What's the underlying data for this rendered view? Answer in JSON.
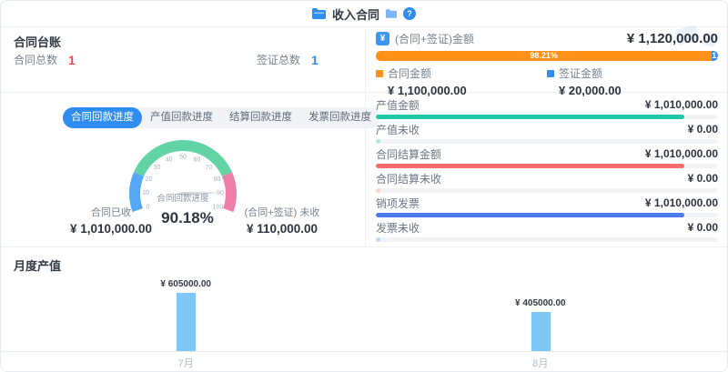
{
  "header": {
    "title": "收入合同",
    "help": "?"
  },
  "ledger": {
    "title": "合同台账",
    "items": [
      {
        "label": "合同总数",
        "value": "1",
        "color": "#f5484d"
      },
      {
        "label": "签证总数",
        "value": "1",
        "color": "#2f8cf0"
      }
    ]
  },
  "summary": {
    "icon": "¥",
    "label": "(合同+签证)金额"
  },
  "metrics": [
    {
      "label": "产值金额",
      "value": "¥ 1,010,000.00",
      "color": "#20c9a6",
      "percent": 90.18
    },
    {
      "label": "产值未收",
      "value": "¥ 0.00",
      "color": "#a9e9da",
      "percent": 1.3
    },
    {
      "label": "合同结算金额",
      "value": "¥ 1,010,000.00",
      "color": "#f56c6c",
      "percent": 90.18
    },
    {
      "label": "合同结算未收",
      "value": "¥ 0.00",
      "color": "#fbd2d2",
      "percent": 1.3
    },
    {
      "label": "销项发票",
      "value": "¥ 1,010,000.00",
      "color": "#4a7bf0",
      "percent": 90.18
    },
    {
      "label": "发票未收",
      "value": "¥ 0.00",
      "color": "#c8d6fb",
      "percent": 1.3
    }
  ],
  "progress": {
    "tabs": [
      {
        "label": "合同回款进度",
        "active": true
      },
      {
        "label": "产值回款进度",
        "active": false
      },
      {
        "label": "结算回款进度",
        "active": false
      },
      {
        "label": "发票回款进度",
        "active": false
      }
    ],
    "percent_text": "90.18%",
    "received": {
      "label": "合同已收",
      "value": "¥ 1,010,000.00"
    },
    "unreceived": {
      "label": "(合同+签证) 未收",
      "value": "¥ 110,000.00"
    }
  },
  "monthly": {
    "title": "月度产值"
  },
  "chart_data": [
    {
      "type": "bar",
      "subtype": "stacked-horizontal",
      "title": "(合同+签证)金额",
      "total": 1120000,
      "total_text": "¥ 1,120,000.00",
      "series": [
        {
          "name": "合同金额",
          "value": 1100000,
          "value_text": "¥ 1,100,000.00",
          "percent": 98.21,
          "percent_text": "98.21%",
          "color": "#ff9018"
        },
        {
          "name": "签证金额",
          "value": 20000,
          "value_text": "¥ 20,000.00",
          "percent": 1.79,
          "percent_text": "1.79%",
          "color": "#2f8cf0"
        }
      ]
    },
    {
      "type": "gauge",
      "title": "合同回款进度",
      "value": 90.18,
      "value_text": "90.18%",
      "min": 0,
      "max": 100,
      "tick_step": 10,
      "segments": [
        {
          "from": 0,
          "to": 20,
          "color": "#54a8f6"
        },
        {
          "from": 20,
          "to": 80,
          "color": "#61d3a5"
        },
        {
          "from": 80,
          "to": 100,
          "color": "#ee7ea8"
        }
      ]
    },
    {
      "type": "bar",
      "title": "月度产值",
      "categories": [
        "7月",
        "8月"
      ],
      "values": [
        605000,
        405000
      ],
      "labels": [
        "¥ 605000.00",
        "¥ 405000.00"
      ],
      "bar_color": "#7ec8f7",
      "ylim": [
        0,
        650000
      ]
    }
  ]
}
